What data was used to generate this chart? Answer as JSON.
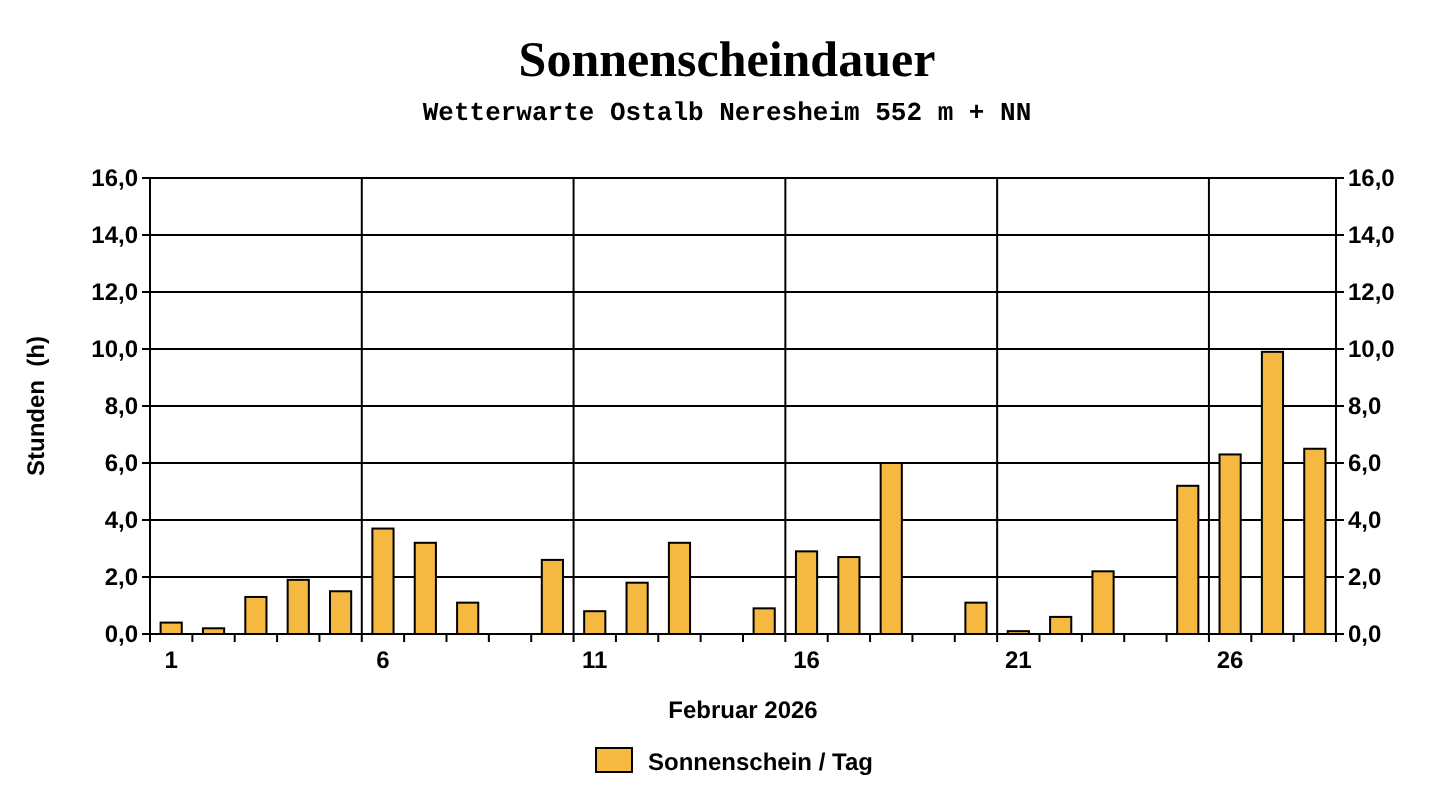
{
  "chart_data": {
    "type": "bar",
    "title": "Sonnenscheindauer",
    "subtitle": "Wetterwarte Ostalb Neresheim 552 m + NN",
    "xlabel": "Februar 2026",
    "ylabel": "Stunden  (h)",
    "categories": [
      "1",
      null,
      null,
      null,
      null,
      "6",
      null,
      null,
      null,
      null,
      "11",
      null,
      null,
      null,
      null,
      "16",
      null,
      null,
      null,
      null,
      "21",
      null,
      null,
      null,
      null,
      "26",
      null,
      null
    ],
    "series": [
      {
        "name": "Sonnenschein / Tag",
        "color": "#f5b942",
        "values": [
          0.4,
          0.2,
          1.3,
          1.9,
          1.5,
          3.7,
          3.2,
          1.1,
          0,
          2.6,
          0.8,
          1.8,
          3.2,
          0,
          0.9,
          2.9,
          2.7,
          6.0,
          0,
          1.1,
          0.1,
          0.6,
          2.2,
          0,
          5.2,
          6.3,
          9.9,
          6.5
        ]
      }
    ],
    "ylim": [
      0,
      16
    ],
    "yticks": [
      {
        "value": 0,
        "label": "0,0"
      },
      {
        "value": 2,
        "label": "2,0"
      },
      {
        "value": 4,
        "label": "4,0"
      },
      {
        "value": 6,
        "label": "6,0"
      },
      {
        "value": 8,
        "label": "8,0"
      },
      {
        "value": 10,
        "label": "10,0"
      },
      {
        "value": 12,
        "label": "12,0"
      },
      {
        "value": 14,
        "label": "14,0"
      },
      {
        "value": 16,
        "label": "16,0"
      }
    ],
    "y2lim": [
      0,
      16
    ],
    "y2ticks": [
      {
        "value": 0,
        "label": "0,0"
      },
      {
        "value": 2,
        "label": "2,0"
      },
      {
        "value": 4,
        "label": "4,0"
      },
      {
        "value": 6,
        "label": "6,0"
      },
      {
        "value": 8,
        "label": "8,0"
      },
      {
        "value": 10,
        "label": "10,0"
      },
      {
        "value": 12,
        "label": "12,0"
      },
      {
        "value": 14,
        "label": "14,0"
      },
      {
        "value": 16,
        "label": "16,0"
      }
    ],
    "grid": true,
    "legend": "bottom"
  }
}
